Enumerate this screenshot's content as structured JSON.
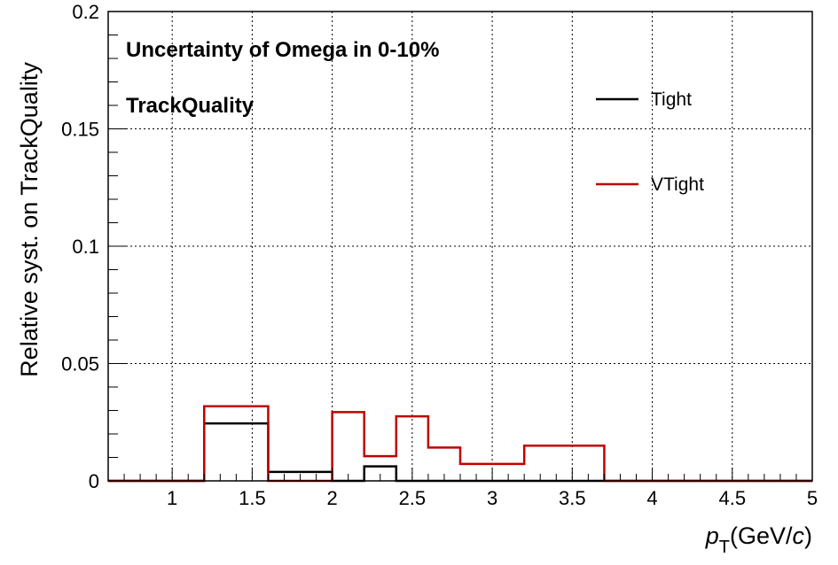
{
  "chart_data": {
    "type": "line",
    "step": true,
    "title": "",
    "annotations": [
      "Uncertainty of Omega in 0-10%",
      "TrackQuality"
    ],
    "xlabel_main": "p",
    "xlabel_sub": "T",
    "xlabel_unit": "(GeV/",
    "xlabel_unit_italic": "c",
    "xlabel_close": ")",
    "ylabel": "Relative syst. on TrackQuality",
    "xlim": [
      0.6,
      5.0
    ],
    "ylim": [
      0,
      0.2
    ],
    "grid": true,
    "legend_position": "top-right",
    "x_ticks": [
      1,
      1.5,
      2,
      2.5,
      3,
      3.5,
      4,
      4.5,
      5
    ],
    "x_tick_labels": [
      "1",
      "1.5",
      "2",
      "2.5",
      "3",
      "3.5",
      "4",
      "4.5",
      "5"
    ],
    "y_ticks": [
      0,
      0.05,
      0.1,
      0.15,
      0.2
    ],
    "y_tick_labels": [
      "0",
      "0.05",
      "0.1",
      "0.15",
      "0.2"
    ],
    "bin_edges": [
      0.6,
      1.2,
      1.6,
      2.0,
      2.2,
      2.4,
      2.6,
      2.8,
      3.2,
      3.7,
      5.0
    ],
    "series": [
      {
        "name": "Tight",
        "color": "#000000",
        "values": [
          0,
          0.0245,
          0.0038,
          0,
          0.0062,
          0,
          0,
          0,
          0,
          0
        ]
      },
      {
        "name": "VTight",
        "color": "#c00000",
        "values": [
          0,
          0.0318,
          0,
          0.0293,
          0.0105,
          0.0275,
          0.0142,
          0.0072,
          0.015,
          0
        ]
      }
    ]
  }
}
